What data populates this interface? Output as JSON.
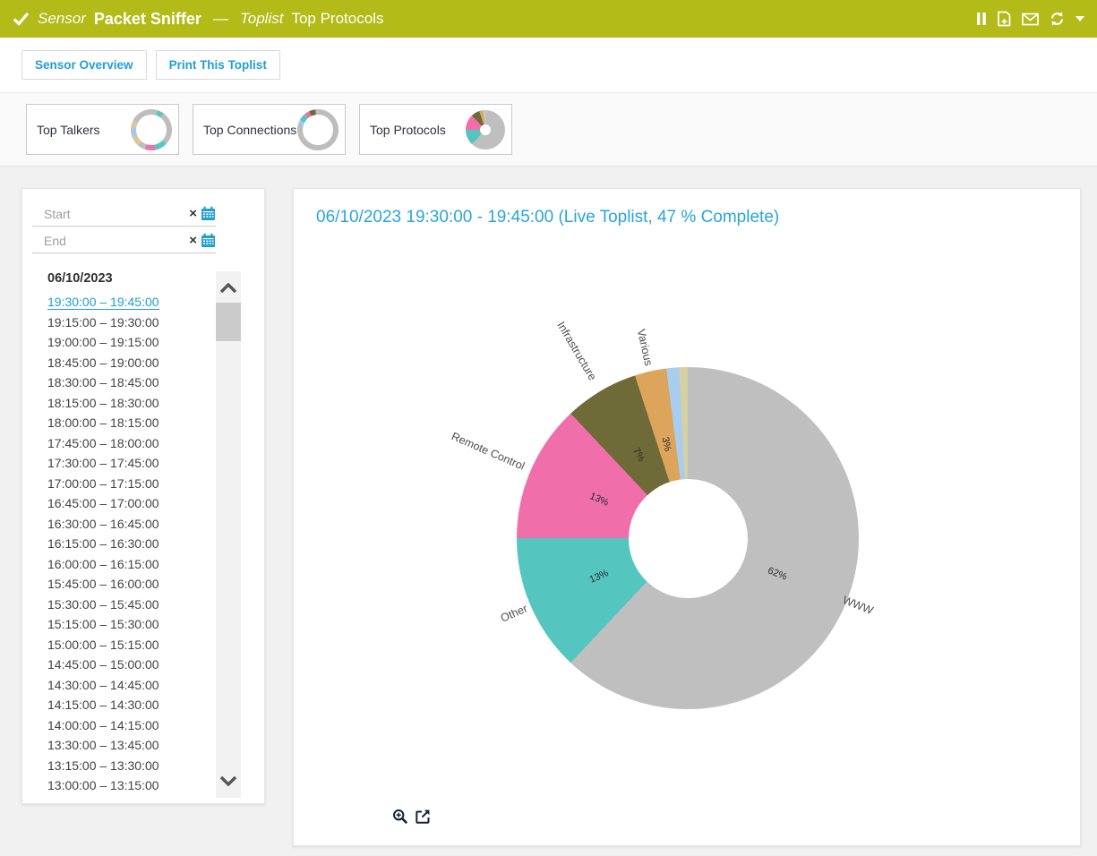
{
  "colors": {
    "header_bg": "#b2bb18",
    "accent_blue": "#219fd2",
    "page_bg": "#f1f1f1",
    "panel_bg": "#ffffff",
    "icon_dark": "#16213e"
  },
  "header": {
    "check_icon": "check-icon",
    "sensor_label": "Sensor",
    "sensor_name": "Packet Sniffer",
    "dash": "—",
    "toplist_label": "Toplist",
    "toplist_name": "Top Protocols",
    "icons": [
      "pause-icon",
      "add-report-icon",
      "email-icon",
      "refresh-icon",
      "caret-down-icon"
    ]
  },
  "toolbar": {
    "sensor_overview_label": "Sensor Overview",
    "print_toplist_label": "Print This Toplist"
  },
  "tabs": [
    {
      "label": "Top Talkers",
      "icon": "chord-diagram-icon"
    },
    {
      "label": "Top Connections",
      "icon": "chord-diagram-icon"
    },
    {
      "label": "Top Protocols",
      "icon": "donut-chart-icon"
    }
  ],
  "sidebar": {
    "start_placeholder": "Start",
    "end_placeholder": "End",
    "clear_label": "×",
    "date_header": "06/10/2023",
    "selected_index": 0,
    "intervals": [
      "19:30:00 – 19:45:00",
      "19:15:00 – 19:30:00",
      "19:00:00 – 19:15:00",
      "18:45:00 – 19:00:00",
      "18:30:00 – 18:45:00",
      "18:15:00 – 18:30:00",
      "18:00:00 – 18:15:00",
      "17:45:00 – 18:00:00",
      "17:30:00 – 17:45:00",
      "17:00:00 – 17:15:00",
      "16:45:00 – 17:00:00",
      "16:30:00 – 16:45:00",
      "16:15:00 – 16:30:00",
      "16:00:00 – 16:15:00",
      "15:45:00 – 16:00:00",
      "15:30:00 – 15:45:00",
      "15:15:00 – 15:30:00",
      "15:00:00 – 15:15:00",
      "14:45:00 – 15:00:00",
      "14:30:00 – 14:45:00",
      "14:15:00 – 14:30:00",
      "14:00:00 – 14:15:00",
      "13:30:00 – 13:45:00",
      "13:15:00 – 13:30:00",
      "13:00:00 – 13:15:00"
    ]
  },
  "chart_panel": {
    "title": "06/10/2023 19:30:00 - 19:45:00 (Live Toplist, 47 % Complete)",
    "footer_icons": [
      "zoom-in-icon",
      "external-link-icon"
    ]
  },
  "chart_data": {
    "type": "pie",
    "donut": true,
    "title": "06/10/2023 19:30:00 - 19:45:00 (Live Toplist, 47 % Complete)",
    "unit": "%",
    "legend": "radial-labels",
    "start_angle_deg": 0,
    "direction": "clockwise",
    "slices": [
      {
        "label": "WWW",
        "value": 62,
        "color": "#bfbfbf"
      },
      {
        "label": "Other",
        "value": 13,
        "color": "#55c6bf"
      },
      {
        "label": "Remote Control",
        "value": 13,
        "color": "#f06fab"
      },
      {
        "label": "Infrastructure",
        "value": 7,
        "color": "#6f6b39"
      },
      {
        "label": "Various",
        "value": 3,
        "color": "#dda45c"
      },
      {
        "label": "",
        "value": 1.2,
        "color": "#a9cdec"
      },
      {
        "label": "",
        "value": 0.8,
        "color": "#d6d0a2"
      }
    ]
  }
}
